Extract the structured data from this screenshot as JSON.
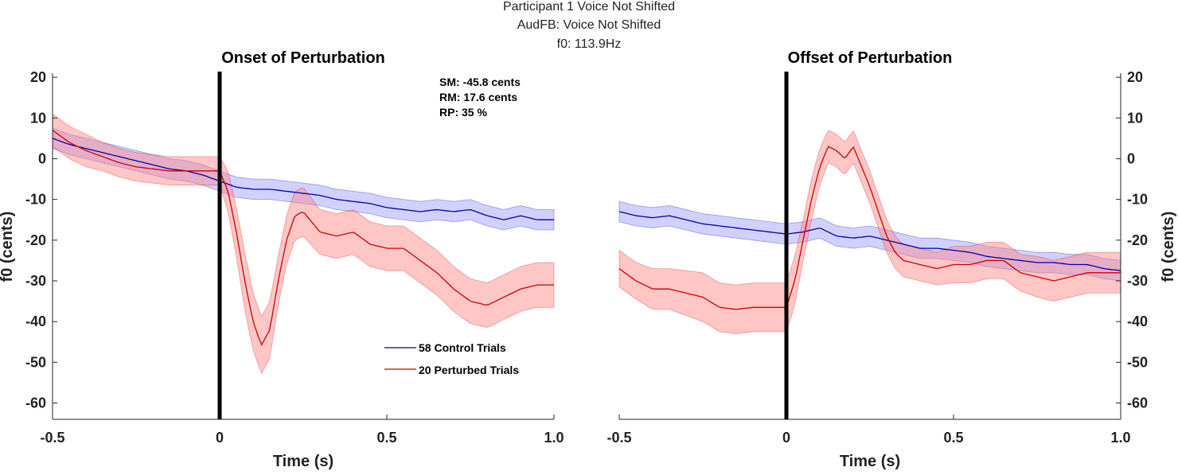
{
  "figure": {
    "title_lines": [
      "Participant 1 Voice Not Shifted",
      "AudFB: Voice Not Shifted",
      "f0: 113.9Hz"
    ]
  },
  "stats": {
    "lines": [
      "SM: -45.8 cents",
      "RM: 17.6 cents",
      "RP: 35 %"
    ]
  },
  "legend": {
    "entries": [
      {
        "label": "58 Control Trials",
        "color": "#0000aa"
      },
      {
        "label": "20 Perturbed Trials",
        "color": "#cc0000"
      }
    ]
  },
  "colors": {
    "control_line": "#0000aa",
    "control_band": "#9999ff",
    "perturbed_line": "#cc0000",
    "perturbed_band": "#ff8080",
    "event_line": "#000000"
  },
  "chart_data": [
    {
      "type": "line",
      "title": "Onset of Perturbation",
      "xlabel": "Time (s)",
      "ylabel": "f0 (cents)",
      "xlim": [
        -0.5,
        1.0
      ],
      "ylim": [
        -64,
        21
      ],
      "xticks": [
        -0.5,
        0,
        0.5,
        1.0
      ],
      "xtick_labels": [
        "-0.5",
        "0",
        "0.5",
        "1.0"
      ],
      "yticks": [
        20,
        10,
        0,
        -10,
        -20,
        -30,
        -40,
        -50,
        -60
      ],
      "ytick_labels": [
        "20",
        "10",
        "0",
        "-10",
        "-20",
        "-30",
        "-40",
        "-50",
        "-60"
      ],
      "yaxis_side": "left",
      "event_x": 0,
      "grid": false,
      "legend_position": "lower-right",
      "series": [
        {
          "name": "58 Control Trials",
          "x": [
            -0.5,
            -0.45,
            -0.4,
            -0.35,
            -0.3,
            -0.25,
            -0.2,
            -0.15,
            -0.1,
            -0.05,
            0,
            0.05,
            0.1,
            0.15,
            0.2,
            0.25,
            0.3,
            0.35,
            0.4,
            0.45,
            0.5,
            0.55,
            0.6,
            0.65,
            0.7,
            0.75,
            0.8,
            0.85,
            0.9,
            0.95,
            1.0
          ],
          "y": [
            5,
            3.5,
            2.5,
            1.5,
            0.5,
            -0.5,
            -1.5,
            -2.5,
            -3,
            -4,
            -5.5,
            -7,
            -7.5,
            -7.5,
            -8,
            -8.5,
            -9,
            -10,
            -10.5,
            -11,
            -12,
            -12.5,
            -13,
            -12.5,
            -13,
            -12.5,
            -14,
            -15,
            -14,
            -15,
            -15
          ],
          "ci": [
            2.5,
            2.5,
            2.5,
            2.5,
            2.5,
            2.5,
            2.5,
            2.5,
            2.5,
            2.5,
            2.5,
            2.5,
            2.5,
            2.5,
            2.5,
            2.5,
            2.5,
            2.5,
            2.5,
            2.5,
            2.5,
            2.5,
            2.5,
            2.5,
            2.5,
            2.5,
            2.5,
            2.5,
            2.5,
            2.5,
            2.5
          ]
        },
        {
          "name": "20 Perturbed Trials",
          "x": [
            -0.5,
            -0.45,
            -0.4,
            -0.35,
            -0.3,
            -0.25,
            -0.2,
            -0.15,
            -0.1,
            -0.05,
            0,
            0.025,
            0.05,
            0.075,
            0.1,
            0.125,
            0.15,
            0.175,
            0.2,
            0.225,
            0.25,
            0.3,
            0.35,
            0.4,
            0.45,
            0.5,
            0.55,
            0.6,
            0.65,
            0.7,
            0.75,
            0.8,
            0.85,
            0.9,
            0.95,
            1.0
          ],
          "y": [
            7,
            4,
            2,
            0.5,
            -1,
            -2,
            -2.5,
            -3,
            -3,
            -3,
            -3,
            -8,
            -18,
            -30,
            -40,
            -45.8,
            -42,
            -30,
            -20,
            -14,
            -13,
            -18,
            -19,
            -18,
            -21,
            -22,
            -22,
            -25,
            -28,
            -32,
            -35,
            -36,
            -34,
            -32,
            -31,
            -31
          ],
          "ci": [
            4,
            4,
            4,
            3.5,
            3.5,
            3.5,
            3.5,
            3.5,
            3.5,
            3.5,
            3.5,
            5,
            6,
            7,
            7,
            7,
            7,
            6,
            6,
            6,
            6,
            5.5,
            5.5,
            5.5,
            5.5,
            5.5,
            5.5,
            5.5,
            5.5,
            5.5,
            5.5,
            5.5,
            5.5,
            5.5,
            5.5,
            5.5
          ]
        }
      ]
    },
    {
      "type": "line",
      "title": "Offset of Perturbation",
      "xlabel": "Time (s)",
      "ylabel": "f0 (cents)",
      "xlim": [
        -0.5,
        1.0
      ],
      "ylim": [
        -64,
        21
      ],
      "xticks": [
        -0.5,
        0,
        0.5,
        1.0
      ],
      "xtick_labels": [
        "-0.5",
        "0",
        "0.5",
        "1.0"
      ],
      "yticks": [
        20,
        10,
        0,
        -10,
        -20,
        -30,
        -40,
        -50,
        -60
      ],
      "ytick_labels": [
        "20",
        "10",
        "0",
        "-10",
        "-20",
        "-30",
        "-40",
        "-50",
        "-60"
      ],
      "yaxis_side": "right",
      "event_x": 0,
      "grid": false,
      "series": [
        {
          "name": "58 Control Trials",
          "x": [
            -0.5,
            -0.45,
            -0.4,
            -0.35,
            -0.3,
            -0.25,
            -0.2,
            -0.15,
            -0.1,
            -0.05,
            0,
            0.05,
            0.1,
            0.15,
            0.2,
            0.25,
            0.3,
            0.35,
            0.4,
            0.45,
            0.5,
            0.55,
            0.6,
            0.65,
            0.7,
            0.75,
            0.8,
            0.85,
            0.9,
            0.95,
            1.0
          ],
          "y": [
            -13,
            -14,
            -14.5,
            -14,
            -15,
            -16,
            -16.5,
            -17,
            -17.5,
            -18,
            -18.5,
            -18,
            -17,
            -19,
            -19.5,
            -19,
            -20,
            -21,
            -22,
            -22,
            -22.5,
            -23,
            -24,
            -24.5,
            -25,
            -25.5,
            -25.5,
            -26,
            -26,
            -27,
            -27.5
          ],
          "ci": [
            2.5,
            2.5,
            2.5,
            2.5,
            2.5,
            2.5,
            2.5,
            2.5,
            2.5,
            2.5,
            2.5,
            2.5,
            2.5,
            2.5,
            2.5,
            2.5,
            2.5,
            2.5,
            2.5,
            2.5,
            2.5,
            2.5,
            2.5,
            2.5,
            2.5,
            2.5,
            2.5,
            2.5,
            2.5,
            2.5,
            2.5
          ]
        },
        {
          "name": "20 Perturbed Trials",
          "x": [
            -0.5,
            -0.45,
            -0.4,
            -0.35,
            -0.3,
            -0.25,
            -0.2,
            -0.15,
            -0.1,
            -0.05,
            0,
            0.025,
            0.05,
            0.075,
            0.1,
            0.125,
            0.15,
            0.175,
            0.2,
            0.225,
            0.25,
            0.275,
            0.3,
            0.325,
            0.35,
            0.4,
            0.45,
            0.5,
            0.55,
            0.6,
            0.65,
            0.7,
            0.75,
            0.8,
            0.85,
            0.9,
            0.95,
            1.0
          ],
          "y": [
            -27,
            -30,
            -32,
            -32,
            -33,
            -34,
            -36.5,
            -37,
            -36.5,
            -36.5,
            -36.5,
            -30,
            -20,
            -10,
            -2,
            3,
            2,
            0,
            3,
            -2,
            -7,
            -13,
            -19,
            -23,
            -25,
            -26,
            -27,
            -26,
            -26,
            -25,
            -25,
            -28,
            -29,
            -30,
            -29,
            -28,
            -28,
            -28
          ],
          "ci": [
            4.5,
            4.5,
            5,
            5,
            5.5,
            6,
            6,
            6,
            6,
            6,
            6,
            6,
            5,
            5,
            4.5,
            4,
            4,
            4,
            4,
            4,
            4,
            4,
            4,
            4,
            4,
            4,
            4,
            4.5,
            4.5,
            4.5,
            4.5,
            4.5,
            5,
            5,
            5,
            5,
            5,
            5
          ]
        }
      ]
    }
  ]
}
